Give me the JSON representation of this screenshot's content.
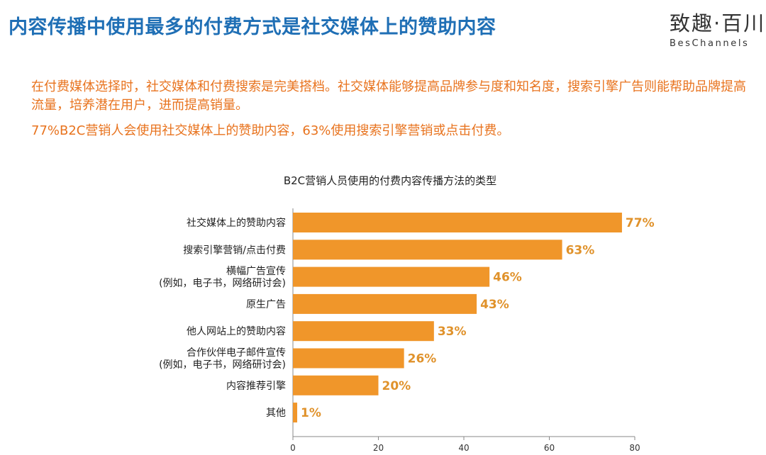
{
  "header": {
    "title": "内容传播中使用最多的付费方式是社交媒体上的赞助内容",
    "logo_cn": "致趣",
    "logo_sep": "·",
    "logo_cn2": "百川",
    "logo_en": "BesChannels"
  },
  "intro": {
    "paragraph1": "在付费媒体选择时，社交媒体和付费搜索是完美搭档。社交媒体能够提高品牌参与度和知名度，搜索引擎广告则能帮助品牌提高流量，培养潜在用户，进而提高销量。",
    "paragraph2": "77%B2C营销人会使用社交媒体上的赞助内容，63%使用搜索引擎营销或点击付费。"
  },
  "chart_data": {
    "type": "bar",
    "orientation": "horizontal",
    "title": "B2C营销人员使用的付费内容传播方法的类型",
    "categories": [
      [
        "社交媒体上的赞助内容"
      ],
      [
        "搜索引擎营销/点击付费"
      ],
      [
        "横幅广告宣传",
        "(例如，电子书，网络研讨会)"
      ],
      [
        "原生广告"
      ],
      [
        "他人网站上的赞助内容"
      ],
      [
        "合作伙伴电子邮件宣传",
        "(例如，电子书，网络研讨会)"
      ],
      [
        "内容推荐引擎"
      ],
      [
        "其他"
      ]
    ],
    "values": [
      77,
      63,
      46,
      43,
      33,
      26,
      20,
      1
    ],
    "value_labels": [
      "77%",
      "63%",
      "46%",
      "43%",
      "33%",
      "26%",
      "20%",
      "1%"
    ],
    "xlim": [
      0,
      80
    ],
    "xticks": [
      "0",
      "20",
      "40",
      "60",
      "80"
    ],
    "bar_color": "#f0962a",
    "label_color": "#e0922b",
    "grid": false
  }
}
